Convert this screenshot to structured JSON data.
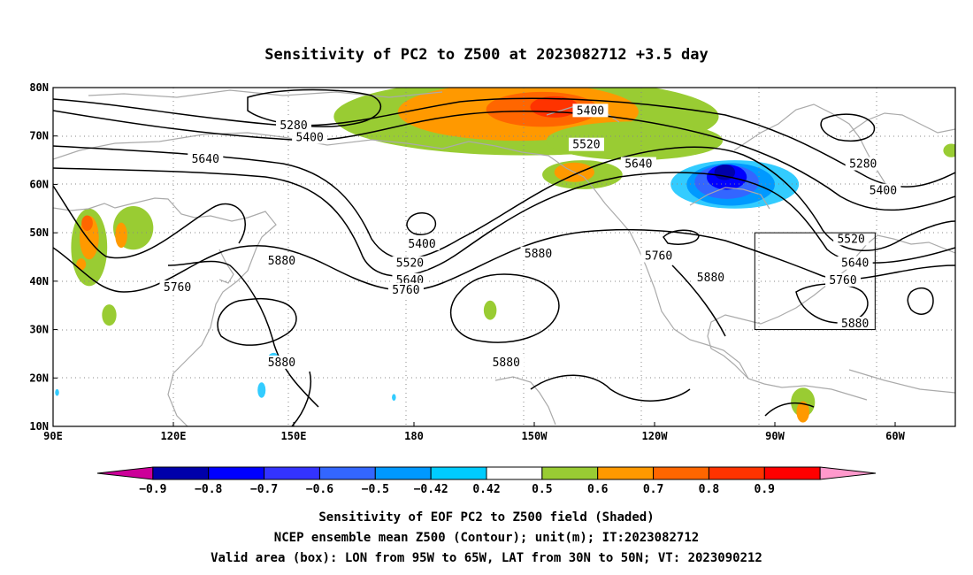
{
  "title": "Sensitivity of PC2 to Z500 at 2023082712 +3.5 day",
  "map": {
    "lon_labels": [
      "90E",
      "120E",
      "150E",
      "180",
      "150W",
      "120W",
      "90W",
      "60W"
    ],
    "lat_labels": [
      "80N",
      "70N",
      "60N",
      "50N",
      "40N",
      "30N",
      "20N",
      "10N"
    ],
    "lon_range_deg_east": [
      90,
      315
    ],
    "lat_range": [
      10,
      80
    ],
    "gridlines": "dotted",
    "valid_box": {
      "lon": [
        -95,
        -65
      ],
      "lat": [
        30,
        50
      ]
    }
  },
  "contours": {
    "line_color": "#000000",
    "labels": [
      {
        "text": "5280",
        "lon": 150,
        "lat": 72
      },
      {
        "text": "5400",
        "lon": 154,
        "lat": 69.5
      },
      {
        "text": "5640",
        "lon": 128,
        "lat": 65
      },
      {
        "text": "5400",
        "lon": 224,
        "lat": 75
      },
      {
        "text": "5520",
        "lon": 223,
        "lat": 68
      },
      {
        "text": "5640",
        "lon": 236,
        "lat": 64
      },
      {
        "text": "5280",
        "lon": 292,
        "lat": 64
      },
      {
        "text": "5400",
        "lon": 297,
        "lat": 58.5
      },
      {
        "text": "5520",
        "lon": 289,
        "lat": 48.5
      },
      {
        "text": "5640",
        "lon": 290,
        "lat": 43.5
      },
      {
        "text": "5760",
        "lon": 287,
        "lat": 40
      },
      {
        "text": "5880",
        "lon": 290,
        "lat": 31
      },
      {
        "text": "5400",
        "lon": 182,
        "lat": 47.5
      },
      {
        "text": "5520",
        "lon": 179,
        "lat": 43.5
      },
      {
        "text": "5640",
        "lon": 179,
        "lat": 40
      },
      {
        "text": "5760",
        "lon": 178,
        "lat": 38
      },
      {
        "text": "5880",
        "lon": 147,
        "lat": 44
      },
      {
        "text": "5760",
        "lon": 121,
        "lat": 38.5
      },
      {
        "text": "5880",
        "lon": 147,
        "lat": 23
      },
      {
        "text": "5880",
        "lon": 211,
        "lat": 45.5
      },
      {
        "text": "5760",
        "lon": 241,
        "lat": 45
      },
      {
        "text": "5880",
        "lon": 254,
        "lat": 40.5
      },
      {
        "text": "5880",
        "lon": 203,
        "lat": 23
      }
    ]
  },
  "shading": {
    "blobs": [
      {
        "color": "#99cc33",
        "lon": 208,
        "lat": 74,
        "rx": 48,
        "ry": 8
      },
      {
        "color": "#ff9900",
        "lon": 206,
        "lat": 75,
        "rx": 30,
        "ry": 6
      },
      {
        "color": "#ff6600",
        "lon": 212,
        "lat": 75.5,
        "rx": 14,
        "ry": 3.6
      },
      {
        "color": "#ff3300",
        "lon": 215,
        "lat": 76,
        "rx": 6,
        "ry": 2.2
      },
      {
        "color": "#99cc33",
        "lon": 235,
        "lat": 69,
        "rx": 22,
        "ry": 4
      },
      {
        "color": "#99cc33",
        "lon": 222,
        "lat": 62,
        "rx": 10,
        "ry": 3
      },
      {
        "color": "#ff9900",
        "lon": 220,
        "lat": 62.5,
        "rx": 5,
        "ry": 2
      },
      {
        "color": "#33ccff",
        "lon": 260,
        "lat": 60,
        "rx": 16,
        "ry": 5
      },
      {
        "color": "#0099ff",
        "lon": 259,
        "lat": 60,
        "rx": 11,
        "ry": 4.4
      },
      {
        "color": "#3366ff",
        "lon": 258,
        "lat": 60.5,
        "rx": 8,
        "ry": 3.5
      },
      {
        "color": "#0000ff",
        "lon": 258,
        "lat": 61.5,
        "rx": 5,
        "ry": 2.6
      },
      {
        "color": "#0000aa",
        "lon": 257.5,
        "lat": 62.5,
        "rx": 2.6,
        "ry": 1.6
      },
      {
        "color": "#99cc33",
        "lon": 99,
        "lat": 47,
        "rx": 4.5,
        "ry": 8
      },
      {
        "color": "#99cc33",
        "lon": 110,
        "lat": 51,
        "rx": 5,
        "ry": 4.5
      },
      {
        "color": "#ff9900",
        "lon": 99,
        "lat": 49,
        "rx": 2.4,
        "ry": 4.5
      },
      {
        "color": "#ff6600",
        "lon": 98.5,
        "lat": 52,
        "rx": 1.4,
        "ry": 1.6
      },
      {
        "color": "#ff9900",
        "lon": 107,
        "lat": 49.5,
        "rx": 1.5,
        "ry": 2.6
      },
      {
        "color": "#ff9900",
        "lon": 97,
        "lat": 43.5,
        "rx": 1.2,
        "ry": 1.2
      },
      {
        "color": "#ff9900",
        "lon": 104,
        "lat": 32.5,
        "rx": 1.2,
        "ry": 1.6
      },
      {
        "color": "#99cc33",
        "lon": 104,
        "lat": 33,
        "rx": 1.8,
        "ry": 2.2
      },
      {
        "color": "#99cc33",
        "lon": 199,
        "lat": 34,
        "rx": 1.6,
        "ry": 2
      },
      {
        "color": "#99cc33",
        "lon": 277,
        "lat": 15,
        "rx": 3,
        "ry": 3
      },
      {
        "color": "#ff9900",
        "lon": 277,
        "lat": 13,
        "rx": 1.6,
        "ry": 2.2
      },
      {
        "color": "#99cc33",
        "lon": 314,
        "lat": 67,
        "rx": 2,
        "ry": 1.4
      },
      {
        "color": "#33ccff",
        "lon": 145,
        "lat": 24,
        "rx": 1.4,
        "ry": 1.2
      },
      {
        "color": "#33ccff",
        "lon": 142,
        "lat": 17.5,
        "rx": 1,
        "ry": 1.6
      },
      {
        "color": "#33ccff",
        "lon": 91,
        "lat": 17,
        "rx": 0.5,
        "ry": 0.7
      },
      {
        "color": "#33ccff",
        "lon": 175,
        "lat": 16,
        "rx": 0.5,
        "ry": 0.7
      }
    ]
  },
  "colorbar": {
    "colors": [
      "#cc0099",
      "#0000aa",
      "#0000ff",
      "#3333ff",
      "#3366ff",
      "#0099ff",
      "#00ccff",
      "#ffffff",
      "#99cc33",
      "#ff9900",
      "#ff6600",
      "#ff3300",
      "#ff0000",
      "#ff99cc"
    ],
    "labels": [
      "−0.9",
      "−0.8",
      "−0.7",
      "−0.6",
      "−0.5",
      "−0.42",
      "0.42",
      "0.5",
      "0.6",
      "0.7",
      "0.8",
      "0.9"
    ]
  },
  "footer": {
    "line1": "Sensitivity of EOF PC2 to Z500 field (Shaded)",
    "line2": "NCEP ensemble mean Z500 (Contour); unit(m); IT:2023082712",
    "line3": "Valid area (box): LON from 95W to 65W, LAT from 30N to 50N; VT: 2023090212"
  }
}
